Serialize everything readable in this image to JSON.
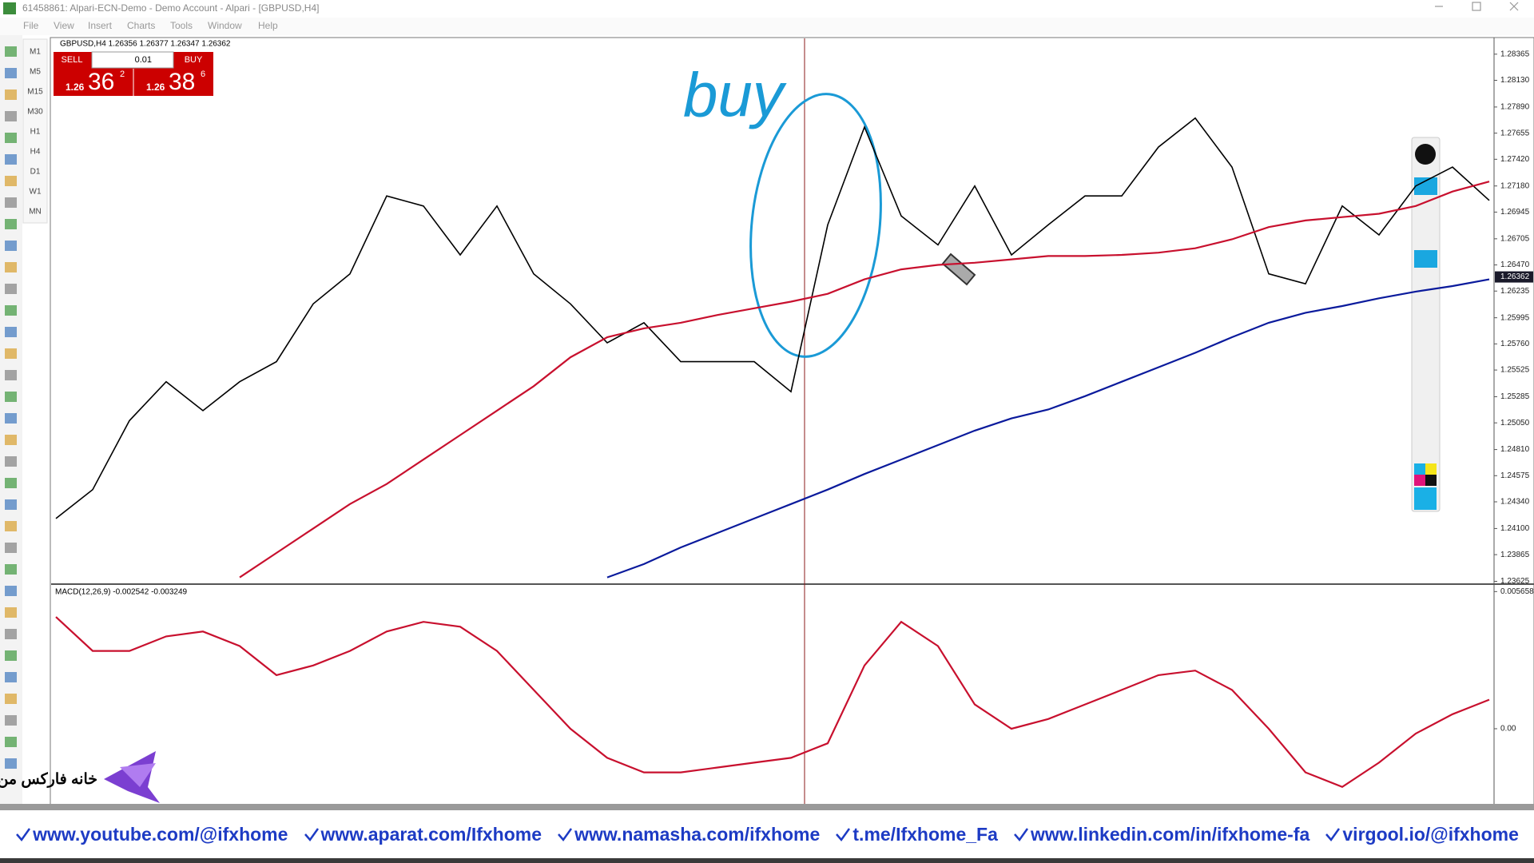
{
  "window": {
    "title": "61458861: Alpari-ECN-Demo - Demo Account - Alpari - [GBPUSD,H4]",
    "menu": [
      "File",
      "View",
      "Insert",
      "Charts",
      "Tools",
      "Window",
      "Help"
    ],
    "timeframes": [
      "M1",
      "M5",
      "M15",
      "M30",
      "H1",
      "H4",
      "D1",
      "W1",
      "MN"
    ]
  },
  "chart_data": [
    {
      "type": "line",
      "title": "GBPUSD,H4  1.26356 1.26377 1.26347 1.26362",
      "trade_panel": {
        "sell": "SELL",
        "lot": "0.01",
        "buy": "BUY",
        "bid_prefix": "1.26",
        "bid_big": "36",
        "bid_small": "2",
        "ask_prefix": "1.26",
        "ask_big": "38",
        "ask_small": "6"
      },
      "annotation": "buy",
      "current_price": 1.26362,
      "ylim": [
        1.236,
        1.285
      ],
      "yticks": [
        {
          "value": 1.28365,
          "label": "1.28365"
        },
        {
          "value": 1.2813,
          "label": "1.28130"
        },
        {
          "value": 1.2789,
          "label": "1.27890"
        },
        {
          "value": 1.27655,
          "label": "1.27655"
        },
        {
          "value": 1.2742,
          "label": "1.27420"
        },
        {
          "value": 1.2718,
          "label": "1.27180"
        },
        {
          "value": 1.26945,
          "label": "1.26945"
        },
        {
          "value": 1.26705,
          "label": "1.26705"
        },
        {
          "value": 1.2647,
          "label": "1.26470"
        },
        {
          "value": 1.26235,
          "label": "1.26235"
        },
        {
          "value": 1.25995,
          "label": "1.25995"
        },
        {
          "value": 1.2576,
          "label": "1.25760"
        },
        {
          "value": 1.25525,
          "label": "1.25525"
        },
        {
          "value": 1.25285,
          "label": "1.25285"
        },
        {
          "value": 1.2505,
          "label": "1.25050"
        },
        {
          "value": 1.2481,
          "label": "1.24810"
        },
        {
          "value": 1.24575,
          "label": "1.24575"
        },
        {
          "value": 1.2434,
          "label": "1.24340"
        },
        {
          "value": 1.241,
          "label": "1.24100"
        },
        {
          "value": 1.23865,
          "label": "1.23865"
        },
        {
          "value": 1.23625,
          "label": "1.23625"
        }
      ],
      "series": [
        {
          "color": "#000000",
          "values": [
            1.2419,
            1.2445,
            1.2507,
            1.2542,
            1.2516,
            1.2542,
            1.256,
            1.2612,
            1.2639,
            1.2709,
            1.27,
            1.2656,
            1.27,
            1.2639,
            1.2612,
            1.2577,
            1.2595,
            1.256,
            1.256,
            1.256,
            1.2533,
            1.2683,
            1.2771,
            1.2691,
            1.2665,
            1.2718,
            1.2656,
            1.2683,
            1.2709,
            1.2709,
            1.2753,
            1.2779,
            1.2735,
            1.2639,
            1.263,
            1.27,
            1.2674,
            1.2718,
            1.2735,
            1.2705
          ]
        },
        {
          "color": "#c8102e",
          "values": [
            null,
            null,
            null,
            null,
            null,
            1.2366,
            1.2388,
            1.241,
            1.2432,
            1.245,
            1.2472,
            1.2494,
            1.2516,
            1.2538,
            1.2564,
            1.2582,
            1.259,
            1.2595,
            1.2602,
            1.2608,
            1.2614,
            1.2621,
            1.2634,
            1.2643,
            1.2647,
            1.2649,
            1.2652,
            1.2655,
            1.2655,
            1.2656,
            1.2658,
            1.2662,
            1.267,
            1.2681,
            1.2687,
            1.269,
            1.2693,
            1.27,
            1.2713,
            1.2722
          ]
        },
        {
          "color": "#0a1a9c",
          "values": [
            null,
            null,
            null,
            null,
            null,
            null,
            null,
            null,
            null,
            null,
            null,
            null,
            null,
            null,
            null,
            1.2366,
            1.2378,
            1.2393,
            1.2406,
            1.2419,
            1.2432,
            1.2445,
            1.2459,
            1.2472,
            1.2485,
            1.2498,
            1.2509,
            1.2517,
            1.2529,
            1.2542,
            1.2555,
            1.2568,
            1.2582,
            1.2595,
            1.2604,
            1.261,
            1.2617,
            1.2623,
            1.2628,
            1.2634
          ]
        }
      ]
    },
    {
      "type": "line",
      "title": "MACD(12,26,9) -0.002542 -0.003249",
      "ylim": [
        -0.0031,
        0.0059
      ],
      "yticks": [
        0.005658,
        {
          "value": 0,
          "label": "0.00"
        }
      ],
      "series": [
        {
          "color": "#c8102e",
          "values": [
            0.00461,
            0.00321,
            0.00321,
            0.00381,
            0.00401,
            0.00341,
            0.00221,
            0.00261,
            0.00321,
            0.00401,
            0.00441,
            0.00421,
            0.00321,
            0.0016,
            0,
            -0.0012,
            -0.0018,
            -0.0018,
            -0.0016,
            -0.0014,
            -0.0012,
            -0.0006,
            0.00261,
            0.00441,
            0.00341,
            0.001,
            0,
            0.0004,
            0.001,
            0.0016,
            0.00221,
            0.0024,
            0.0016,
            0,
            -0.0018,
            -0.0024,
            -0.0014,
            -0.0002,
            0.0006,
            0.0012
          ]
        }
      ]
    }
  ],
  "footer": {
    "logo_text": "خانه فارکس من",
    "links": [
      "www.youtube.com/@ifxhome",
      "www.aparat.com/Ifxhome",
      "www.namasha.com/ifxhome",
      "t.me/Ifxhome_Fa",
      "www.linkedin.com/in/ifxhome-fa",
      "virgool.io/@ifxhome"
    ]
  }
}
